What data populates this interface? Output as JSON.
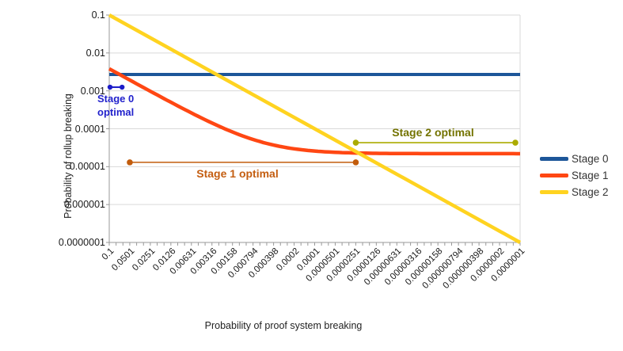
{
  "chart_data": {
    "type": "line",
    "title": "",
    "xlabel": "Probability of proof system breaking",
    "ylabel": "Probability of rollup breaking",
    "x_scale": "log",
    "y_scale": "log",
    "x_range": [
      0.1,
      1e-07
    ],
    "y_range": [
      0.1,
      1e-07
    ],
    "grid": "horizontal",
    "legend_position": "right",
    "x_tick_labels": [
      "0.1",
      "0.0501",
      "0.0251",
      "0.0126",
      "0.00631",
      "0.00316",
      "0.00158",
      "0.000794",
      "0.000398",
      "0.0002",
      "0.0001",
      "0.0000501",
      "0.0000251",
      "0.0000126",
      "0.00000631",
      "0.00000316",
      "0.00000158",
      "0.000000794",
      "0.000000398",
      "0.0000002",
      "0.0000001"
    ],
    "y_tick_labels": [
      "0.1",
      "0.01",
      "0.001",
      "0.0001",
      "0.00001",
      "0.000001",
      "0.0000001"
    ],
    "series": [
      {
        "name": "Stage 0",
        "color": "#1D5699",
        "model": "constant",
        "value": 0.0027,
        "x_samples": [
          0.1,
          0.01,
          0.001,
          0.0001,
          1e-05,
          1e-06,
          1e-07
        ],
        "y_samples": [
          0.0027,
          0.0027,
          0.0027,
          0.0027,
          0.0027,
          0.0027,
          0.0027
        ]
      },
      {
        "name": "Stage 1",
        "color": "#FF4713",
        "model": "linear_plus_floor",
        "slope": 0.038,
        "floor": 2.2e-05,
        "x_samples": [
          0.1,
          0.01,
          0.001,
          0.0001,
          1e-05,
          1e-06,
          1e-07
        ],
        "y_samples": [
          0.0038,
          0.0004,
          6e-05,
          2.58e-05,
          2.24e-05,
          2.22e-05,
          2.2e-05
        ]
      },
      {
        "name": "Stage 2",
        "color": "#FFD320",
        "model": "identity",
        "x_samples": [
          0.1,
          0.01,
          0.001,
          0.0001,
          1e-05,
          1e-06,
          1e-07
        ],
        "y_samples": [
          0.1,
          0.01,
          0.001,
          0.0001,
          1e-05,
          1e-06,
          1e-07
        ]
      }
    ],
    "annotations": [
      {
        "label": "Stage 0 optimal",
        "color": "#1C1CC8",
        "text_color": "#2222CC",
        "x_start": 0.1,
        "x_end": 0.065,
        "y": 0.00125
      },
      {
        "label": "Stage 1 optimal",
        "color": "#C25C0C",
        "text_color": "#C45E11",
        "x_start": 0.0501,
        "x_end": 2.51e-05,
        "y": 1.3e-05
      },
      {
        "label": "Stage 2 optimal",
        "color": "#ABAB00",
        "text_color": "#737300",
        "x_start": 2.51e-05,
        "x_end": 1e-07,
        "y": 4.3e-05
      }
    ]
  },
  "colors": {
    "gridline": "#D9D9D9",
    "axis": "#999999"
  }
}
